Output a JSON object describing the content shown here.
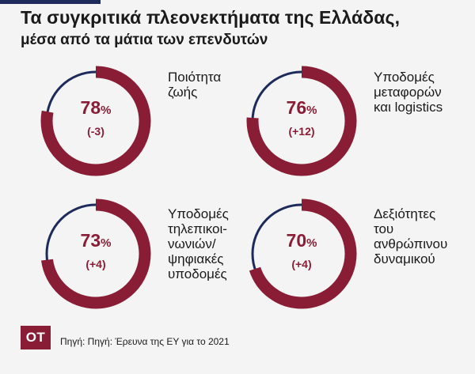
{
  "header": {
    "title": "Τα συγκριτικά πλεονεκτήματα της Ελλάδας,",
    "subtitle": "μέσα από τα μάτια των επενδυτών"
  },
  "chart_data": {
    "type": "donut",
    "unit": "%",
    "items": [
      {
        "label": "Ποιότητα\nζωής",
        "value": 78,
        "change": "(-3)"
      },
      {
        "label": "Υποδομές\nμεταφορών\nκαι logistics",
        "value": 76,
        "change": "(+12)"
      },
      {
        "label": "Υποδομές\nτηλεπικοι-\nνωνιών/\nψηφιακές\nυποδομές",
        "value": 73,
        "change": "(+4)"
      },
      {
        "label": "Δεξιότητες\nτου\nανθρώπινου\nδυναμικού",
        "value": 70,
        "change": "(+4)"
      }
    ],
    "colors": {
      "filled": "#8a1d36",
      "remainder": "#1e2a5a"
    }
  },
  "footer": {
    "logo": "OT",
    "source": "Πηγή: Πηγή: Έρευνα της ΕΥ για το 2021"
  }
}
